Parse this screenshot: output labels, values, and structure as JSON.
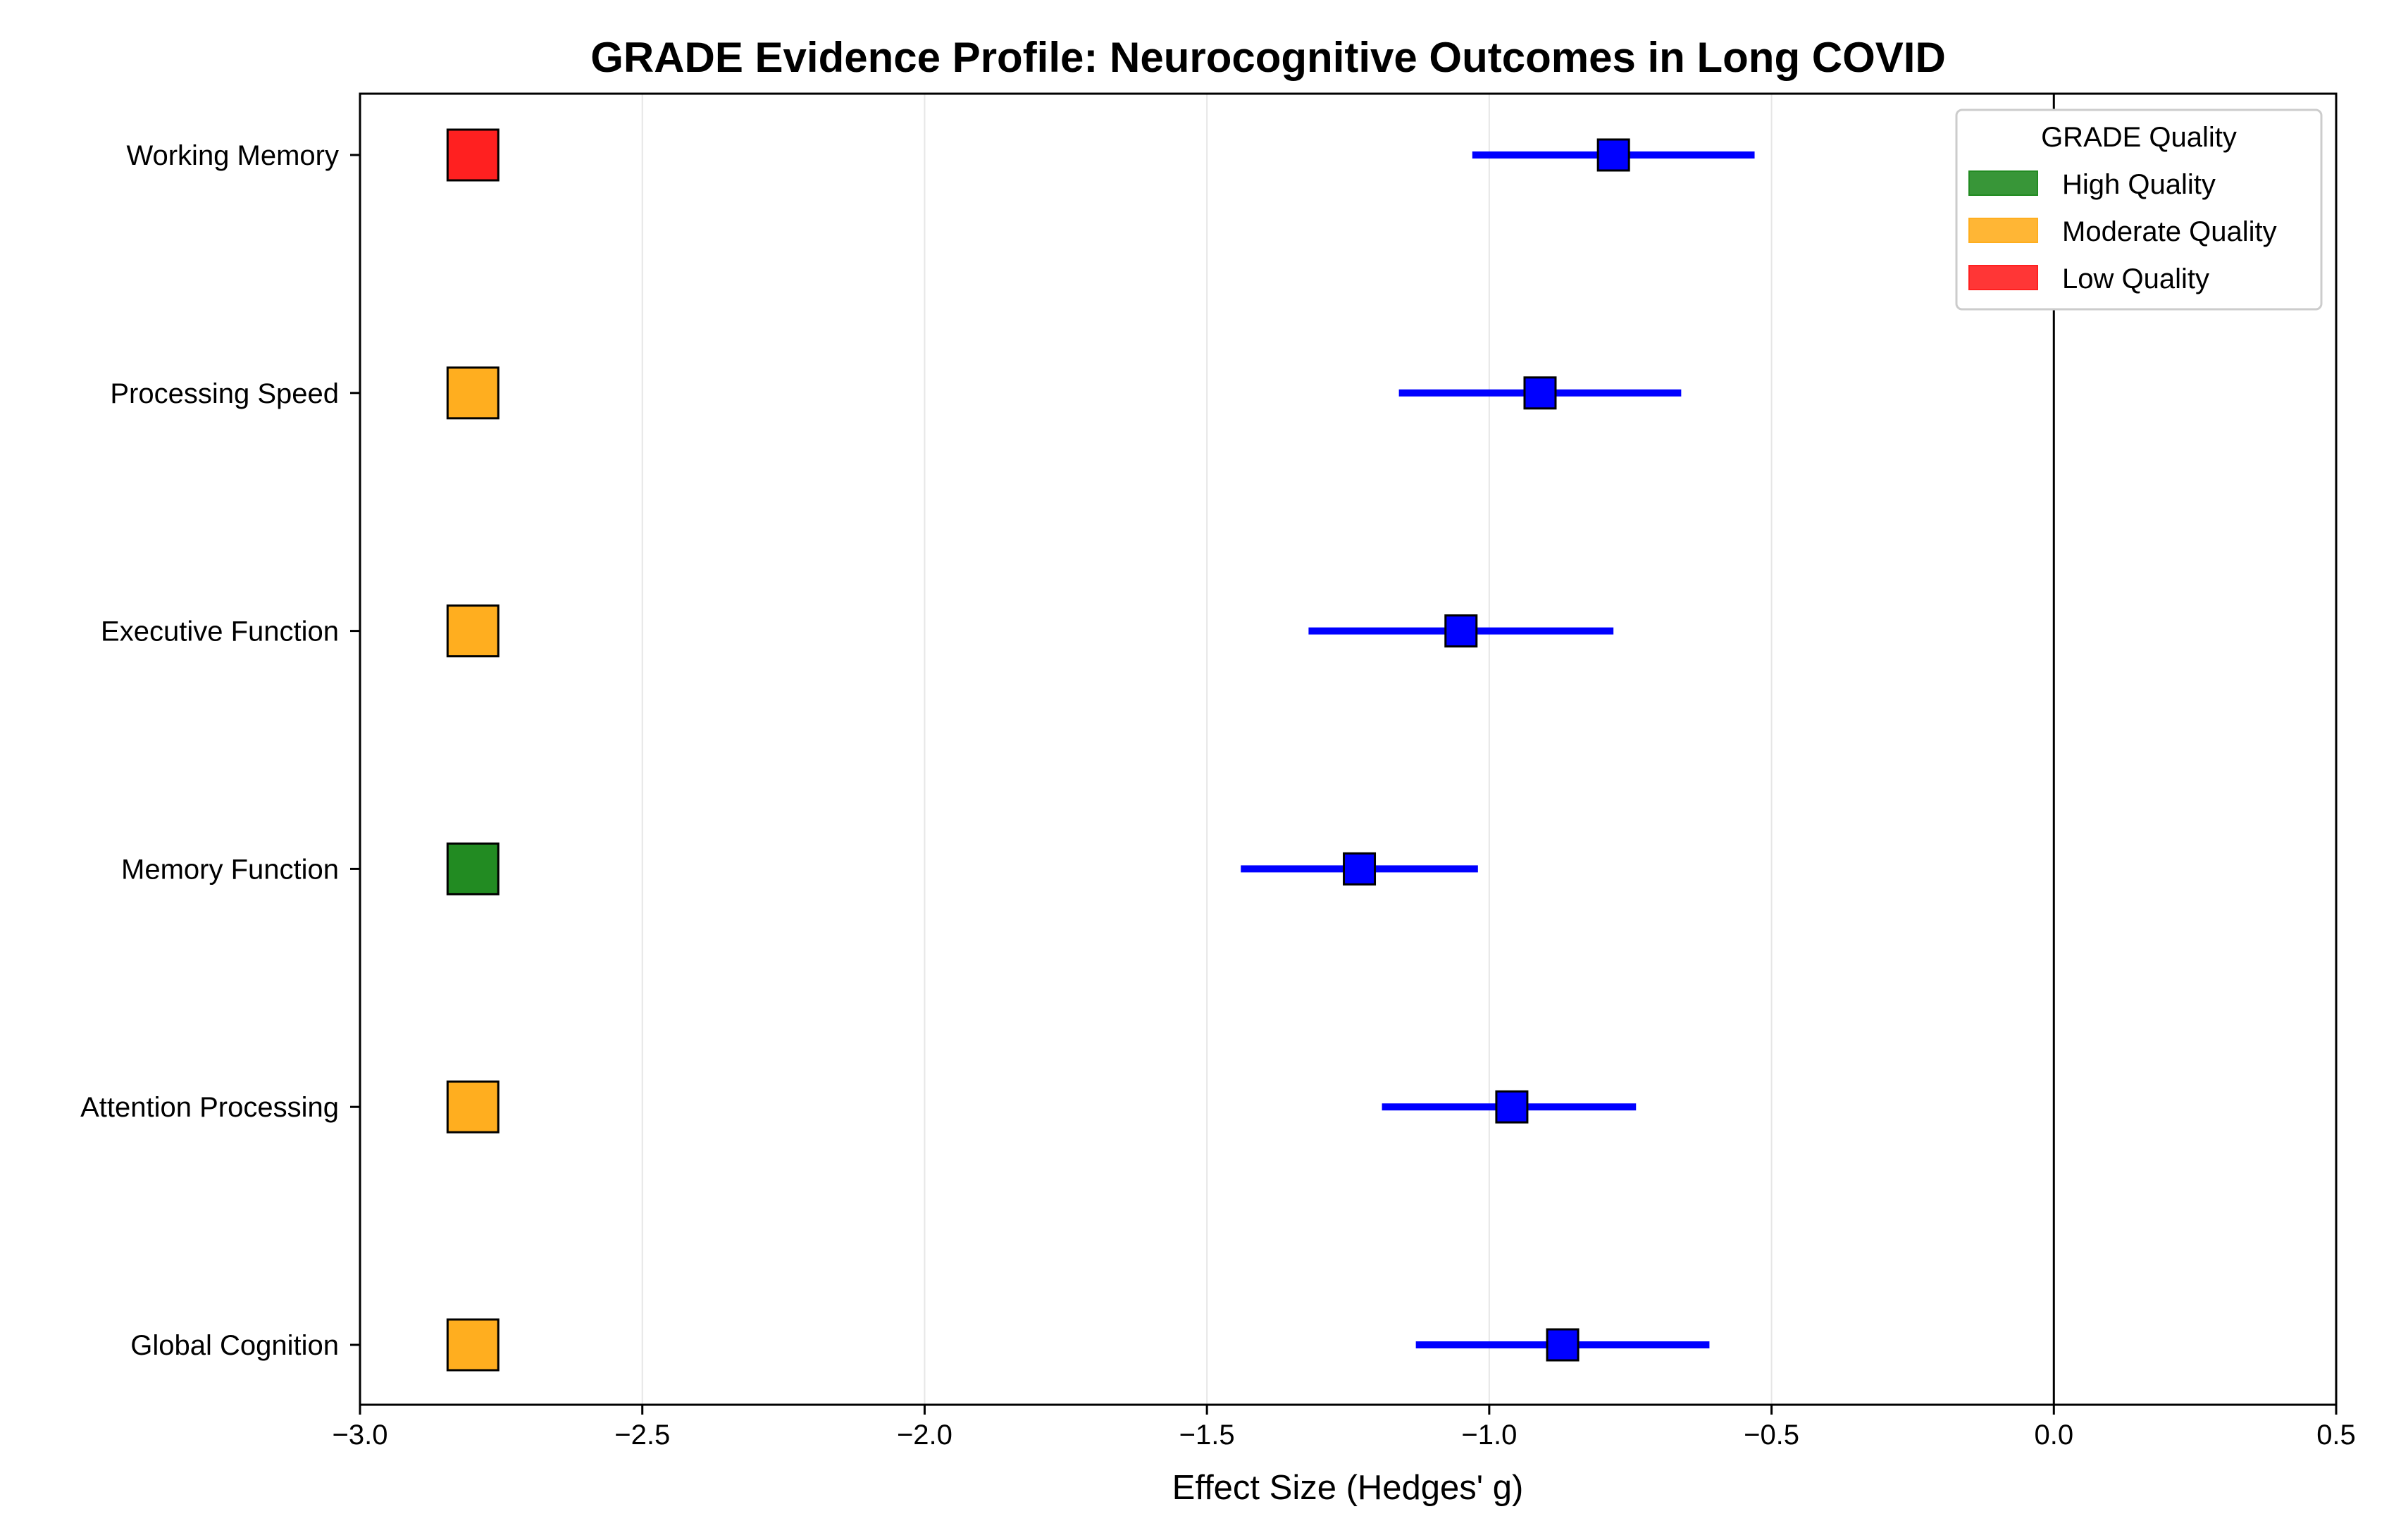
{
  "chart_data": {
    "type": "forest",
    "title": "GRADE Evidence Profile: Neurocognitive Outcomes in Long COVID",
    "xlabel": "Effect Size (Hedges' g)",
    "ylabel": "",
    "xlim": [
      -3.0,
      0.5
    ],
    "xticks": [
      "−3.0",
      "−2.5",
      "−2.0",
      "−1.5",
      "−1.0",
      "−0.5",
      "0.0",
      "0.5"
    ],
    "xtick_values": [
      -3.0,
      -2.5,
      -2.0,
      -1.5,
      -1.0,
      -0.5,
      0.0,
      0.5
    ],
    "reference_line_x": 0.0,
    "grid": "vertical",
    "outcomes": [
      {
        "name": "Working Memory",
        "estimate": -0.78,
        "ci_low": -1.03,
        "ci_high": -0.53,
        "quality": "Low Quality"
      },
      {
        "name": "Processing Speed",
        "estimate": -0.91,
        "ci_low": -1.16,
        "ci_high": -0.66,
        "quality": "Moderate Quality"
      },
      {
        "name": "Executive Function",
        "estimate": -1.05,
        "ci_low": -1.32,
        "ci_high": -0.78,
        "quality": "Moderate Quality"
      },
      {
        "name": "Memory Function",
        "estimate": -1.23,
        "ci_low": -1.44,
        "ci_high": -1.02,
        "quality": "High Quality"
      },
      {
        "name": "Attention Processing",
        "estimate": -0.96,
        "ci_low": -1.19,
        "ci_high": -0.74,
        "quality": "Moderate Quality"
      },
      {
        "name": "Global Cognition",
        "estimate": -0.87,
        "ci_low": -1.13,
        "ci_high": -0.61,
        "quality": "Moderate Quality"
      }
    ],
    "legend": {
      "title": "GRADE Quality",
      "position": "top-right",
      "entries": [
        {
          "label": "High Quality",
          "color": "#228b22"
        },
        {
          "label": "Moderate Quality",
          "color": "#ffae1f"
        },
        {
          "label": "Low Quality",
          "color": "#ff2020"
        }
      ]
    },
    "colors": {
      "point": "#0000ff",
      "ci_line": "#0000ff",
      "edge": "#000000",
      "grid": "#e6e6e6"
    }
  }
}
